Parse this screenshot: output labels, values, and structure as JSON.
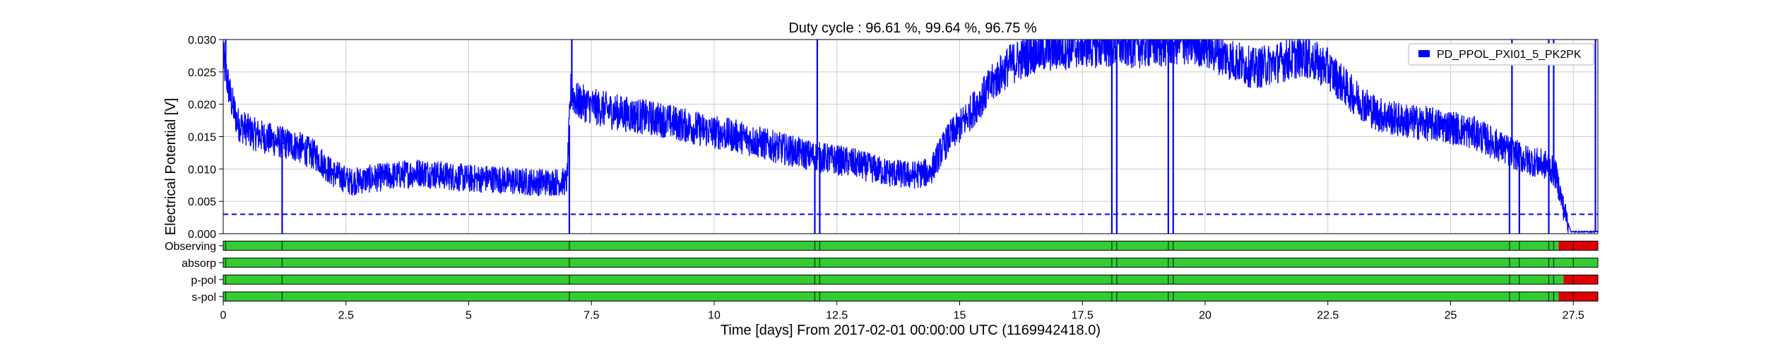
{
  "chart_data": {
    "type": "line",
    "title": "Duty cycle : 96.61 %, 99.64 %, 96.75 %",
    "xlabel": "Time [days] From 2017-02-01 00:00:00 UTC (1169942418.0)",
    "ylabel": "Electrical Potential [V]",
    "xlim": [
      0,
      28
    ],
    "ylim": [
      0,
      0.03
    ],
    "x_ticks": [
      0,
      2.5,
      5,
      7.5,
      10,
      12.5,
      15,
      17.5,
      20,
      22.5,
      25,
      27.5
    ],
    "x_tick_labels": [
      "0",
      "2.5",
      "5",
      "7.5",
      "10",
      "12.5",
      "15",
      "17.5",
      "20",
      "22.5",
      "25",
      "27.5"
    ],
    "y_ticks": [
      0,
      0.005,
      0.01,
      0.015,
      0.02,
      0.025,
      0.03
    ],
    "y_tick_labels": [
      "0.000",
      "0.005",
      "0.010",
      "0.015",
      "0.020",
      "0.025",
      "0.030"
    ],
    "grid": true,
    "legend_position": "top-right",
    "series": [
      {
        "name": "PD_PPOL_PXI01_5_PK2PK",
        "color": "#0000ff",
        "x": [
          0,
          0.15,
          0.3,
          0.6,
          1.0,
          1.5,
          1.9,
          2.2,
          2.6,
          3.0,
          3.5,
          4.0,
          4.5,
          5.0,
          5.5,
          6.0,
          6.5,
          7.0,
          7.08,
          7.2,
          7.6,
          8.2,
          9.0,
          9.8,
          10.5,
          11.2,
          12.0,
          12.8,
          13.5,
          14.0,
          14.4,
          14.6,
          14.8,
          15.0,
          15.3,
          15.7,
          16.0,
          16.5,
          17.0,
          17.5,
          18.0,
          18.5,
          19.0,
          19.5,
          20.0,
          20.5,
          21.0,
          21.5,
          22.0,
          22.5,
          23.0,
          23.5,
          24.0,
          24.5,
          25.0,
          25.5,
          26.0,
          26.5,
          27.0,
          27.15,
          27.3,
          27.45,
          28.0
        ],
        "y": [
          0.027,
          0.021,
          0.017,
          0.0155,
          0.0145,
          0.0135,
          0.012,
          0.0095,
          0.008,
          0.0085,
          0.009,
          0.0095,
          0.009,
          0.0085,
          0.0085,
          0.008,
          0.008,
          0.008,
          0.022,
          0.0205,
          0.0195,
          0.0185,
          0.0175,
          0.016,
          0.015,
          0.0135,
          0.012,
          0.011,
          0.0095,
          0.009,
          0.0095,
          0.0125,
          0.015,
          0.0165,
          0.0195,
          0.0235,
          0.026,
          0.028,
          0.0285,
          0.029,
          0.029,
          0.029,
          0.029,
          0.0295,
          0.029,
          0.027,
          0.0255,
          0.0265,
          0.0275,
          0.0255,
          0.0215,
          0.0185,
          0.0175,
          0.017,
          0.0165,
          0.0155,
          0.0135,
          0.0115,
          0.0105,
          0.009,
          0.004,
          0.0003,
          0.0003
        ]
      }
    ],
    "drops": [
      {
        "x": 1.2,
        "y": 0.0
      },
      {
        "x": 7.05,
        "y": 0.0
      },
      {
        "x": 12.05,
        "y": 0.0
      },
      {
        "x": 12.15,
        "y": 0.0
      },
      {
        "x": 18.1,
        "y": 0.0
      },
      {
        "x": 18.2,
        "y": 0.0
      },
      {
        "x": 19.25,
        "y": 0.0
      },
      {
        "x": 19.35,
        "y": 0.0
      },
      {
        "x": 26.2,
        "y": 0.0
      },
      {
        "x": 26.4,
        "y": 0.0
      },
      {
        "x": 27.0,
        "y": 0.0
      }
    ],
    "spikes": [
      {
        "x": 0.05,
        "y": 0.03
      },
      {
        "x": 7.1,
        "y": 0.03
      },
      {
        "x": 12.1,
        "y": 0.03
      },
      {
        "x": 26.25,
        "y": 0.03
      },
      {
        "x": 27.0,
        "y": 0.03
      },
      {
        "x": 27.1,
        "y": 0.03
      },
      {
        "x": 27.95,
        "y": 0.03
      }
    ],
    "threshold": {
      "y": 0.003,
      "color": "#0000ff",
      "style": "dashed"
    },
    "flag_rows": [
      {
        "label": "Observing",
        "segments": [
          [
            0,
            27.2,
            "on"
          ],
          [
            27.2,
            28,
            "off"
          ]
        ],
        "ticks": [
          0.05,
          1.2,
          7.05,
          12.05,
          12.15,
          18.1,
          18.2,
          19.25,
          19.35,
          26.2,
          26.4,
          27.0,
          27.1,
          27.5
        ]
      },
      {
        "label": "absorp",
        "segments": [
          [
            0,
            28,
            "on"
          ]
        ],
        "ticks": [
          0.05,
          1.2,
          7.05,
          12.05,
          12.15,
          18.1,
          18.2,
          19.25,
          19.35,
          26.2,
          26.4,
          27.0,
          27.1,
          27.5
        ]
      },
      {
        "label": "p-pol",
        "segments": [
          [
            0,
            27.2,
            "on"
          ],
          [
            27.2,
            27.3,
            "on"
          ],
          [
            27.3,
            28,
            "off"
          ]
        ],
        "ticks": [
          0.05,
          1.2,
          7.05,
          12.05,
          12.15,
          18.1,
          18.2,
          19.25,
          19.35,
          26.2,
          26.4,
          27.0,
          27.1,
          27.5
        ]
      },
      {
        "label": "s-pol",
        "segments": [
          [
            0,
            27.2,
            "on"
          ],
          [
            27.2,
            28,
            "off"
          ]
        ],
        "ticks": [
          0.05,
          1.2,
          7.05,
          12.05,
          12.15,
          18.1,
          18.2,
          19.25,
          19.35,
          26.2,
          26.4,
          27.0,
          27.1,
          27.5
        ]
      }
    ],
    "colors": {
      "on": "#33cc33",
      "off": "#dd0000",
      "grid": "#cccccc",
      "line": "#0000ff"
    }
  }
}
